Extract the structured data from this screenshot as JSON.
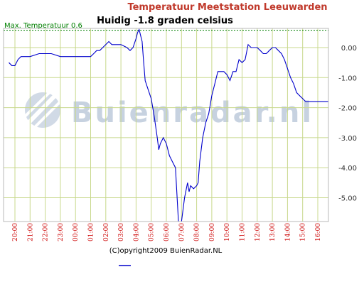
{
  "chart_data": {
    "type": "line",
    "title": "Temperatuur Meetstation Leeuwarden",
    "subtitle": "Huidig -1.8 graden celsius",
    "max_line_label": "Max. Temperatuur 0.6",
    "max_value": 0.6,
    "copyright": "(C)opyright2009 BuienRadar.NL",
    "watermark": "Buienradar.nl",
    "ylim": [
      -5.8,
      0.6
    ],
    "yticks": [
      0.0,
      -1.0,
      -2.0,
      -3.0,
      -4.0,
      -5.0
    ],
    "ytick_labels": [
      "0.00",
      "-1.00",
      "-2.00",
      "-3.00",
      "-4.00",
      "-5.00"
    ],
    "x_hours": [
      20,
      21,
      22,
      23,
      0,
      1,
      2,
      3,
      4,
      5,
      6,
      7,
      8,
      9,
      10,
      11,
      12,
      13,
      14,
      15,
      16
    ],
    "xtick_labels": [
      "20:00",
      "21:00",
      "22:00",
      "23:00",
      "00:00",
      "01:00",
      "02:00",
      "03:00",
      "04:00",
      "05:00",
      "06:00",
      "07:00",
      "08:00",
      "09:00",
      "10:00",
      "11:00",
      "12:00",
      "13:00",
      "14:00",
      "15:00",
      "16:00"
    ],
    "x": [
      19.6,
      19.8,
      20.0,
      20.2,
      20.4,
      21.0,
      21.6,
      21.8,
      22.4,
      23.0,
      23.6,
      24.0,
      24.6,
      25.0,
      25.2,
      25.4,
      25.6,
      25.8,
      26.2,
      26.4,
      26.8,
      27.0,
      27.4,
      27.6,
      27.8,
      28.0,
      28.1,
      28.2,
      28.3,
      28.4,
      28.5,
      28.6,
      28.8,
      29.0,
      29.2,
      29.4,
      29.5,
      29.6,
      29.8,
      30.0,
      30.2,
      30.4,
      30.6,
      30.8,
      31.0,
      31.2,
      31.4,
      31.5,
      31.6,
      31.8,
      32.0,
      32.1,
      32.2,
      32.4,
      32.6,
      32.8,
      33.0,
      33.2,
      33.4,
      33.6,
      33.8,
      34.0,
      34.2,
      34.4,
      34.6,
      34.8,
      35.0,
      35.2,
      35.4,
      35.6,
      35.8,
      36.0,
      36.2,
      36.4,
      36.6,
      36.8,
      37.0,
      37.2,
      37.4,
      37.6,
      37.8,
      38.0,
      38.2,
      38.4,
      38.6,
      38.8,
      39.0,
      39.2,
      39.4,
      39.6,
      39.8,
      40.0,
      40.2,
      40.4,
      40.6,
      40.8,
      41.0,
      41.2,
      41.4
    ],
    "y": [
      -0.5,
      -0.6,
      -0.6,
      -0.4,
      -0.3,
      -0.3,
      -0.2,
      -0.2,
      -0.2,
      -0.3,
      -0.3,
      -0.3,
      -0.3,
      -0.3,
      -0.2,
      -0.1,
      -0.1,
      0.0,
      0.2,
      0.1,
      0.1,
      0.1,
      0.0,
      -0.1,
      0.0,
      0.3,
      0.5,
      0.6,
      0.4,
      0.2,
      -0.5,
      -1.1,
      -1.4,
      -1.7,
      -2.3,
      -3.0,
      -3.4,
      -3.2,
      -3.0,
      -3.2,
      -3.6,
      -3.8,
      -4.0,
      -5.8,
      -5.8,
      -5.0,
      -4.5,
      -4.8,
      -4.6,
      -4.7,
      -4.6,
      -4.5,
      -3.8,
      -3.0,
      -2.5,
      -2.2,
      -1.6,
      -1.2,
      -0.8,
      -0.8,
      -0.8,
      -0.9,
      -1.1,
      -0.8,
      -0.8,
      -0.4,
      -0.5,
      -0.4,
      0.1,
      0.0,
      0.0,
      0.0,
      -0.1,
      -0.2,
      -0.2,
      -0.1,
      0.0,
      0.0,
      -0.1,
      -0.2,
      -0.4,
      -0.7,
      -1.0,
      -1.2,
      -1.5,
      -1.6,
      -1.7,
      -1.8,
      -1.8,
      -1.8,
      -1.8,
      -1.8,
      -1.8,
      -1.8,
      -1.8,
      -1.8,
      -1.8,
      -1.8,
      -1.8
    ],
    "series_color": "#0000cc",
    "grid_color": "#c8d88c",
    "max_line_color": "#008000",
    "title_color": "#c0392b",
    "xtick_color": "#cc0000"
  }
}
